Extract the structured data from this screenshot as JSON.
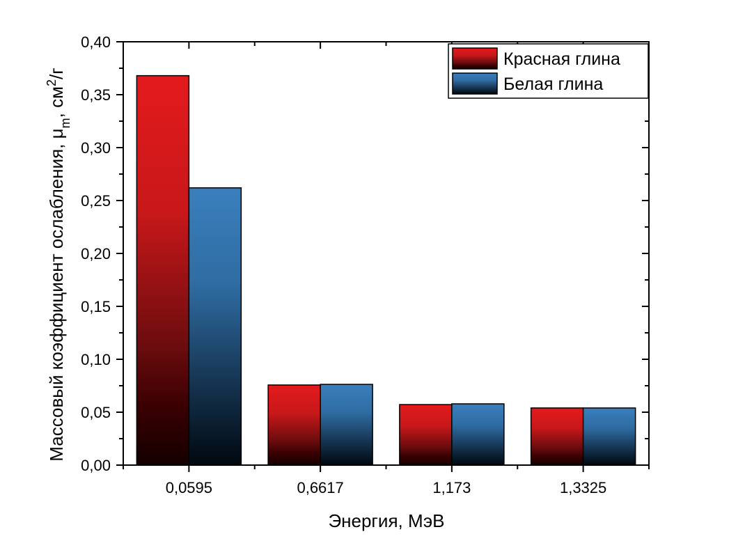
{
  "chart_data": {
    "type": "bar",
    "title": "",
    "xlabel": "Энергия, МэВ",
    "ylabel": "Массовый коэффициент ослабления, μm, см²/г",
    "ylabel_parts": {
      "main": "Массовый коэффициент ослабления, μ",
      "sub": "m",
      "mid": ", см",
      "sup": "2",
      "end": "/г"
    },
    "categories": [
      "0,0595",
      "0,6617",
      "1,173",
      "1,3325"
    ],
    "series": [
      {
        "name": "Красная глина",
        "values": [
          0.368,
          0.0757,
          0.0572,
          0.054
        ],
        "color_top": "#e31a1c",
        "color_bottom": "#1a0000"
      },
      {
        "name": "Белая глина",
        "values": [
          0.262,
          0.0763,
          0.0579,
          0.054
        ],
        "color_top": "#3a7fbd",
        "color_bottom": "#00080f"
      }
    ],
    "ylim": [
      0,
      0.4
    ],
    "yticks": [
      "0,00",
      "0,05",
      "0,10",
      "0,15",
      "0,20",
      "0,25",
      "0,30",
      "0,35",
      "0,40"
    ],
    "grid": false,
    "legend_position": "upper right"
  }
}
